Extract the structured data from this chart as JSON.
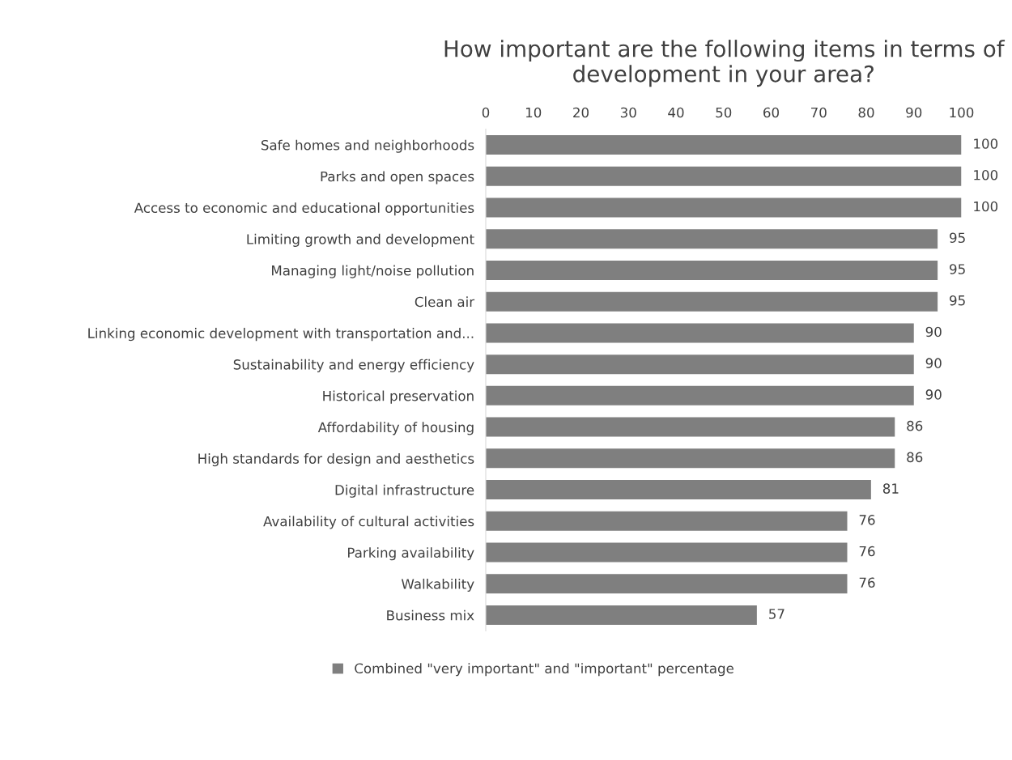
{
  "chart_data": {
    "type": "bar",
    "orientation": "horizontal",
    "title": "How important are the following items in terms of development in your area?",
    "categories": [
      "Safe homes and neighborhoods",
      "Parks and open spaces",
      "Access to economic and educational opportunities",
      "Limiting growth and development",
      "Managing light/noise pollution",
      "Clean air",
      "Linking economic development with transportation and...",
      "Sustainability and energy efficiency",
      "Historical preservation",
      "Affordability of housing",
      "High standards for design and aesthetics",
      "Digital infrastructure",
      "Availability of cultural activities",
      "Parking availability",
      "Walkability",
      "Business mix"
    ],
    "series": [
      {
        "name": "Combined \"very important\" and \"important\" percentage",
        "color": "#7f7f7f",
        "values": [
          100,
          100,
          100,
          95,
          95,
          95,
          90,
          90,
          90,
          86,
          86,
          81,
          76,
          76,
          76,
          57
        ]
      }
    ],
    "xlim": [
      0,
      100
    ],
    "xticks": [
      0,
      10,
      20,
      30,
      40,
      50,
      60,
      70,
      80,
      90,
      100
    ],
    "data_labels": true,
    "grid": false,
    "legend": "bottom"
  }
}
